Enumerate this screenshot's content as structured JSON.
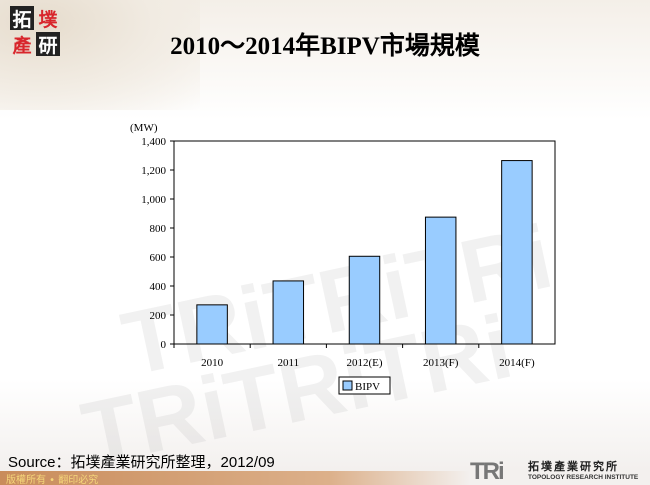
{
  "logo": {
    "chars": [
      "拓",
      "墣",
      "產",
      "研"
    ]
  },
  "title": "2010～2014年BIPV市場規模",
  "chart_data": {
    "type": "bar",
    "title": "2010～2014年BIPV市場規模",
    "ylabel": "(MW)",
    "xlabel": "",
    "categories": [
      "2010",
      "2011",
      "2012(E)",
      "2013(F)",
      "2014(F)"
    ],
    "series": [
      {
        "name": "BIPV",
        "values": [
          270,
          435,
          605,
          875,
          1265
        ],
        "color": "#99ccff"
      }
    ],
    "ylim": [
      0,
      1400
    ],
    "yticks": [
      0,
      200,
      400,
      600,
      800,
      1000,
      1200,
      1400
    ],
    "ytick_labels": [
      "0",
      "200",
      "400",
      "600",
      "800",
      "1,000",
      "1,200",
      "1,400"
    ],
    "grid": false,
    "legend": "bottom"
  },
  "footer": {
    "source": "Source：拓墣產業研究所整理，2012/09",
    "copyright": "版權所有 • 翻印必究",
    "brand_mark": "TRi",
    "brand_cn": "拓墣產業研究所",
    "brand_en": "TOPOLOGY RESEARCH INSTITUTE"
  }
}
